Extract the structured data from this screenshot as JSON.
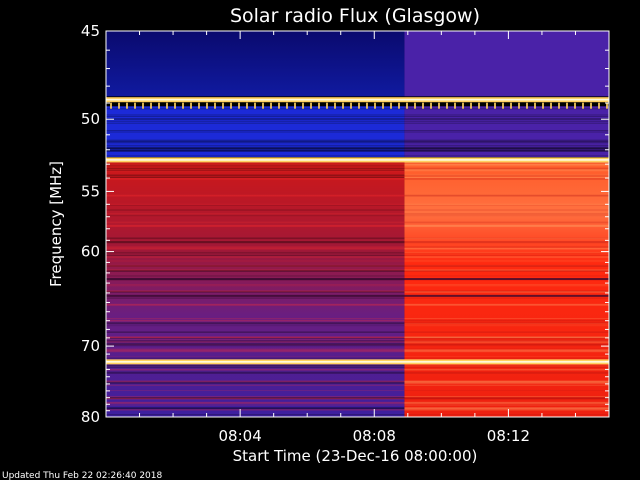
{
  "chart_data": {
    "type": "heatmap",
    "title": "Solar radio Flux (Glasgow)",
    "xlabel": "Start Time (23-Dec-16 08:00:00)",
    "ylabel": "Frequency [MHz]",
    "x_range_minutes": [
      0,
      15
    ],
    "x_tick_values_minutes": [
      4,
      8,
      12
    ],
    "x_tick_labels": [
      "08:04",
      "08:08",
      "08:12"
    ],
    "y_range_mhz": [
      45,
      80
    ],
    "y_scale": "inverse-log",
    "y_tick_values": [
      45,
      50,
      55,
      60,
      70,
      80
    ],
    "y_tick_labels": [
      "45",
      "50",
      "55",
      "60",
      "70",
      "80"
    ],
    "transition_time_minutes": 8.9,
    "regions": [
      {
        "freq_mhz": [
          45,
          48.6
        ],
        "before": "dark blue",
        "after": "purple"
      },
      {
        "freq_mhz": [
          49.2,
          52.5
        ],
        "before": "blue",
        "after": "purple"
      },
      {
        "freq_mhz": [
          52.8,
          80
        ],
        "before": "red to purple",
        "after": "orange-red"
      }
    ],
    "bright_bands_mhz": [
      48.8,
      52.7,
      72.0
    ],
    "colors": {
      "background": "#000000",
      "dark_blue": "#0a0a6e",
      "blue": "#1c2ad8",
      "purple": "#4a22a8",
      "red": "#c81414",
      "orange": "#ff5a28",
      "band": "#ffd060"
    }
  },
  "footer": {
    "updated": "Updated Thu Feb 22 02:26:40 2018"
  }
}
